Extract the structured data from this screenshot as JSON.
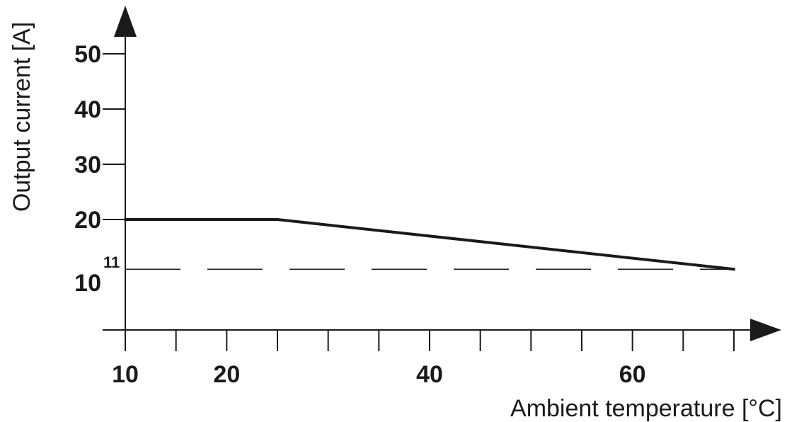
{
  "chart_data": {
    "type": "line",
    "title": "",
    "xlabel": "Ambient temperature [°C]",
    "ylabel": "Output current [A]",
    "xlim": [
      10,
      70
    ],
    "ylim": [
      0,
      55
    ],
    "x_ticks": [
      10,
      15,
      20,
      25,
      30,
      35,
      40,
      45,
      50,
      55,
      60,
      65,
      70
    ],
    "x_tick_labels": [
      {
        "x": 10,
        "label": "10"
      },
      {
        "x": 20,
        "label": "20"
      },
      {
        "x": 40,
        "label": "40"
      },
      {
        "x": 60,
        "label": "60"
      }
    ],
    "y_ticks": [
      {
        "y": 20,
        "label": "20"
      },
      {
        "y": 30,
        "label": "30"
      },
      {
        "y": 40,
        "label": "40"
      },
      {
        "y": 50,
        "label": "50"
      }
    ],
    "y_tick_partial": {
      "y": 10,
      "label": "10"
    },
    "series": [
      {
        "points": [
          {
            "x": 10,
            "y": 20
          },
          {
            "x": 25,
            "y": 20
          },
          {
            "x": 70,
            "y": 11
          }
        ]
      }
    ],
    "reference_line": {
      "y": 11,
      "label": "11",
      "style": "dashed"
    },
    "grid": false,
    "colors": {
      "axis": "#1a1a1a",
      "line": "#1a1a1a"
    }
  }
}
